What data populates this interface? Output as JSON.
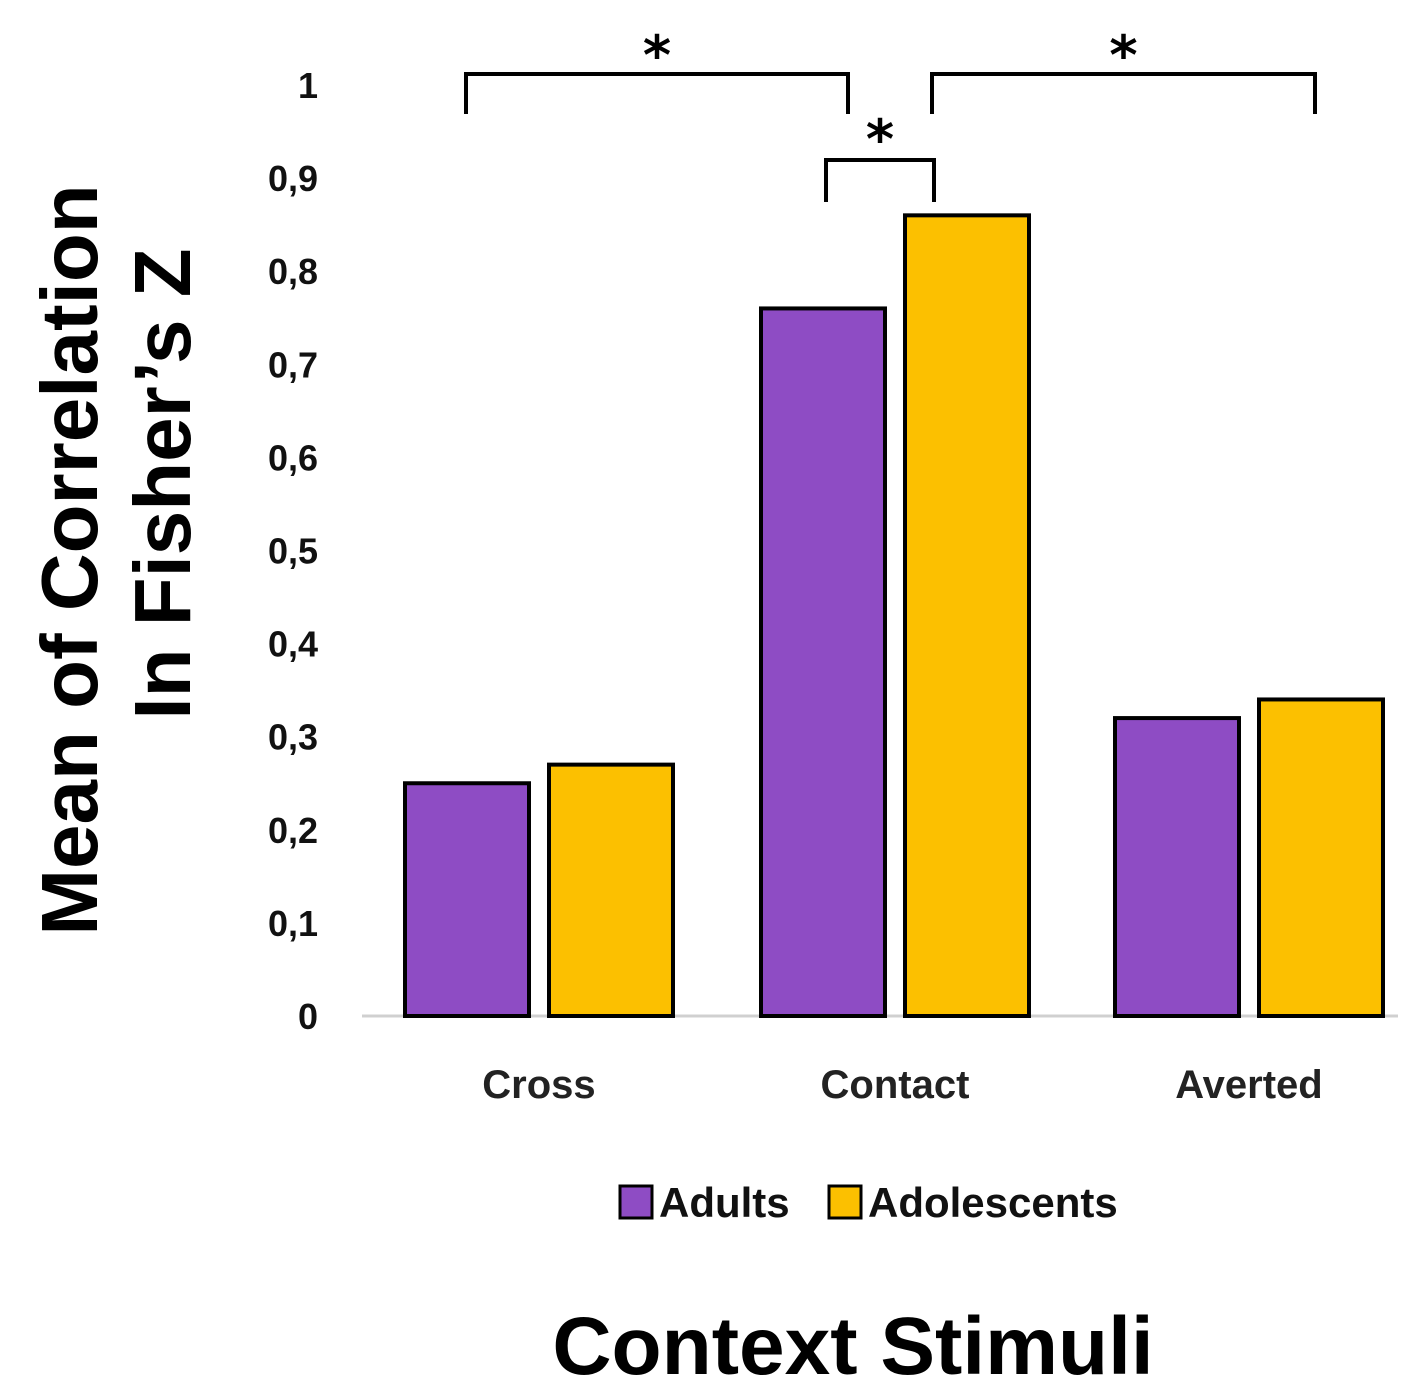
{
  "chart_data": {
    "type": "bar",
    "categories": [
      "Cross",
      "Contact",
      "Averted"
    ],
    "series": [
      {
        "name": "Adults",
        "values": [
          0.25,
          0.76,
          0.32
        ],
        "color": "#8e4cc4"
      },
      {
        "name": "Adolescents",
        "values": [
          0.27,
          0.86,
          0.34
        ],
        "color": "#fcc000"
      }
    ],
    "ylabel_lines": [
      "Mean of Correlation",
      "In Fisher’s Z"
    ],
    "xlabel": "Context Stimuli",
    "ylim": [
      0,
      1
    ],
    "yticks": [
      {
        "value": 0,
        "label": "0"
      },
      {
        "value": 0.1,
        "label": "0,1"
      },
      {
        "value": 0.2,
        "label": "0,2"
      },
      {
        "value": 0.3,
        "label": "0,3"
      },
      {
        "value": 0.4,
        "label": "0,4"
      },
      {
        "value": 0.5,
        "label": "0,5"
      },
      {
        "value": 0.6,
        "label": "0,6"
      },
      {
        "value": 0.7,
        "label": "0,7"
      },
      {
        "value": 0.8,
        "label": "0,8"
      },
      {
        "value": 0.9,
        "label": "0,9"
      },
      {
        "value": 1,
        "label": "1"
      }
    ],
    "grid": false,
    "legend_position": "bottom",
    "significance": [
      {
        "from": "Cross",
        "to": "Contact",
        "label": "*"
      },
      {
        "from": "Contact Adults",
        "to": "Contact Adolescents",
        "label": "*"
      },
      {
        "from": "Contact",
        "to": "Averted",
        "label": "*"
      }
    ]
  }
}
